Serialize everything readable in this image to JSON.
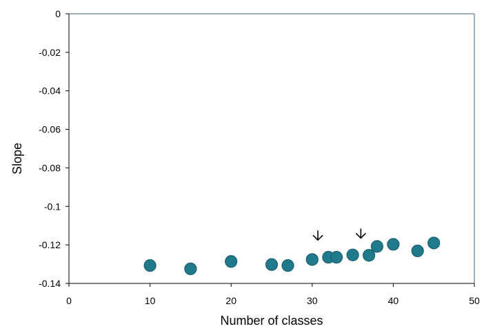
{
  "chart_data": {
    "type": "scatter",
    "title": "",
    "xlabel": "Number of classes",
    "ylabel": "Slope",
    "xlim": [
      0,
      50
    ],
    "ylim": [
      -0.14,
      0
    ],
    "xticks": [
      0,
      10,
      20,
      30,
      40,
      50
    ],
    "yticks": [
      0,
      -0.02,
      -0.04,
      -0.06,
      -0.08,
      -0.1,
      -0.12,
      -0.14
    ],
    "xtick_labels": [
      "0",
      "10",
      "20",
      "30",
      "40",
      "50"
    ],
    "ytick_labels": [
      "0",
      "-0.02",
      "-0.04",
      "-0.06",
      "-0.08",
      "-0.1",
      "-0.12",
      "-0.14"
    ],
    "grid": false,
    "legend": "none",
    "series": [
      {
        "points": [
          {
            "x": 10,
            "y": -0.1307
          },
          {
            "x": 15,
            "y": -0.1324
          },
          {
            "x": 20,
            "y": -0.1286
          },
          {
            "x": 25,
            "y": -0.1302
          },
          {
            "x": 27,
            "y": -0.1307
          },
          {
            "x": 30,
            "y": -0.1276
          },
          {
            "x": 32,
            "y": -0.1264
          },
          {
            "x": 33,
            "y": -0.1264
          },
          {
            "x": 35,
            "y": -0.1252
          },
          {
            "x": 37,
            "y": -0.1254
          },
          {
            "x": 38,
            "y": -0.1208
          },
          {
            "x": 40,
            "y": -0.1197
          },
          {
            "x": 43,
            "y": -0.1231
          },
          {
            "x": 45,
            "y": -0.119
          }
        ],
        "marker_fill": "#1f7a8c",
        "marker_edge": "#1a5f6e"
      }
    ],
    "annotations": [
      {
        "type": "arrow-down",
        "x": 30.7,
        "y_top": -0.1125,
        "y_bottom": -0.1175
      },
      {
        "type": "arrow-down",
        "x": 36.0,
        "y_top": -0.1115,
        "y_bottom": -0.1165
      }
    ],
    "colors": {
      "plot_border": "#3b5e78",
      "axis": "#000000"
    }
  }
}
